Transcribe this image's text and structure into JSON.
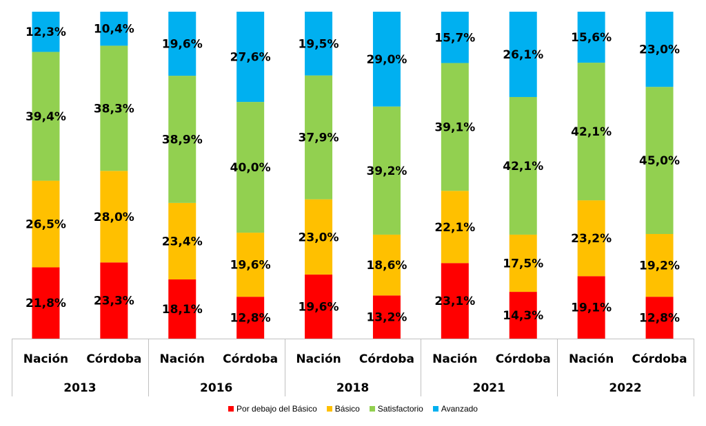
{
  "chart_data": {
    "type": "bar",
    "stacked": true,
    "percent": true,
    "groups": [
      {
        "year": "2013",
        "categories": [
          "Nación",
          "Córdoba"
        ]
      },
      {
        "year": "2016",
        "categories": [
          "Nación",
          "Córdoba"
        ]
      },
      {
        "year": "2018",
        "categories": [
          "Nación",
          "Córdoba"
        ]
      },
      {
        "year": "2021",
        "categories": [
          "Nación",
          "Córdoba"
        ]
      },
      {
        "year": "2022",
        "categories": [
          "Nación",
          "Córdoba"
        ]
      }
    ],
    "series": [
      {
        "name": "Por debajo del Básico",
        "color": "#FF0000",
        "values": [
          21.8,
          23.3,
          18.1,
          12.8,
          19.6,
          13.2,
          23.1,
          14.3,
          19.1,
          12.8
        ],
        "labels": [
          "21,8%",
          "23,3%",
          "18,1%",
          "12,8%",
          "19,6%",
          "13,2%",
          "23,1%",
          "14,3%",
          "19,1%",
          "12,8%"
        ]
      },
      {
        "name": "Básico",
        "color": "#FFC000",
        "values": [
          26.5,
          28.0,
          23.4,
          19.6,
          23.0,
          18.6,
          22.1,
          17.5,
          23.2,
          19.2
        ],
        "labels": [
          "26,5%",
          "28,0%",
          "23,4%",
          "19,6%",
          "23,0%",
          "18,6%",
          "22,1%",
          "17,5%",
          "23,2%",
          "19,2%"
        ]
      },
      {
        "name": "Satisfactorio",
        "color": "#92D050",
        "values": [
          39.4,
          38.3,
          38.9,
          40.0,
          37.9,
          39.2,
          39.1,
          42.1,
          42.1,
          45.0
        ],
        "labels": [
          "39,4%",
          "38,3%",
          "38,9%",
          "40,0%",
          "37,9%",
          "39,2%",
          "39,1%",
          "42,1%",
          "42,1%",
          "45,0%"
        ]
      },
      {
        "name": "Avanzado",
        "color": "#00B0F0",
        "values": [
          12.3,
          10.4,
          19.6,
          27.6,
          19.5,
          29.0,
          15.7,
          26.1,
          15.6,
          23.0
        ],
        "labels": [
          "12,3%",
          "10,4%",
          "19,6%",
          "27,6%",
          "19,5%",
          "29,0%",
          "15,7%",
          "26,1%",
          "15,6%",
          "23,0%"
        ]
      }
    ],
    "ylim": [
      0,
      100
    ],
    "grid": false,
    "legend_position": "bottom"
  }
}
